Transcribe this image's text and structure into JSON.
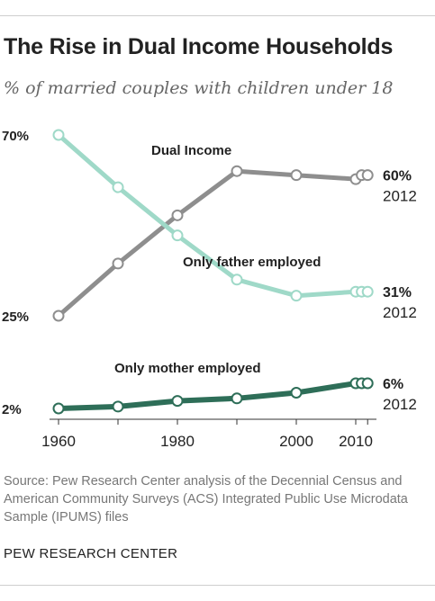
{
  "title": "The Rise in Dual Income Households",
  "subtitle": "% of married couples with children under 18",
  "source": "Source: Pew Research Center analysis of the Decennial Census and American Community Surveys (ACS) Integrated Public Use Microdata Sample (IPUMS) files",
  "brand": "PEW RESEARCH CENTER",
  "colors": {
    "dual_income": "#8e8e8e",
    "only_father": "#9fd9c8",
    "only_mother": "#2e6e58"
  },
  "chart_data": {
    "type": "line",
    "title": "",
    "xlabel": "",
    "ylabel": "",
    "x_ticks": [
      "1960",
      "1980",
      "2000",
      "2010"
    ],
    "y_ticks": [
      "70%",
      "25%",
      "2%"
    ],
    "grid": false,
    "legend": "inline labels",
    "series": [
      {
        "name": "Dual Income",
        "color": "#8e8e8e",
        "x": [
          1960,
          1970,
          1980,
          1990,
          2000,
          2010,
          2011,
          2012
        ],
        "values": [
          25,
          38,
          50,
          61,
          60,
          59,
          60,
          60
        ],
        "end_value": "60%",
        "end_year": "2012"
      },
      {
        "name": "Only father employed",
        "color": "#9fd9c8",
        "x": [
          1960,
          1970,
          1980,
          1990,
          2000,
          2010,
          2011,
          2012
        ],
        "values": [
          70,
          57,
          45,
          34,
          30,
          31,
          31,
          31
        ],
        "end_value": "31%",
        "end_year": "2012"
      },
      {
        "name": "Only mother employed",
        "color": "#2e6e58",
        "x": [
          1960,
          1970,
          1980,
          1990,
          2000,
          2010,
          2011,
          2012
        ],
        "values": [
          2,
          2.3,
          3.2,
          3.6,
          4.5,
          6,
          6,
          6
        ],
        "end_value": "6%",
        "end_year": "2012"
      }
    ]
  }
}
